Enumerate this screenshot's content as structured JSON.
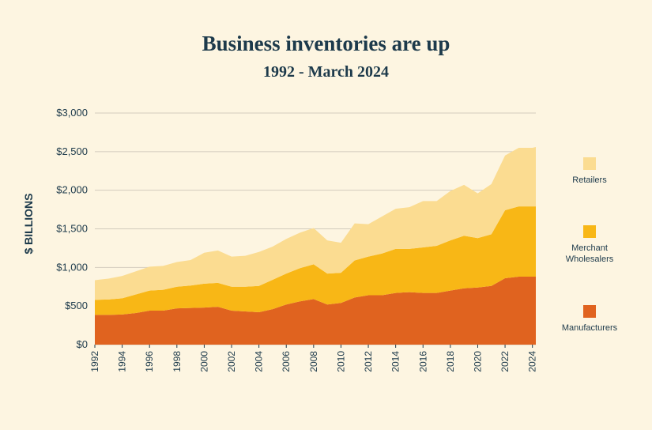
{
  "chart_data": {
    "type": "area",
    "title": "Business inventories are up",
    "subtitle": "1992 - March 2024",
    "ylabel": "$ BILLIONS",
    "xlabel": "",
    "ylim": [
      0,
      3000
    ],
    "xlim": [
      1992,
      2024.25
    ],
    "stacked": true,
    "grid": true,
    "legend_position": "right",
    "y_ticks": [
      {
        "value": 0,
        "label": "$0"
      },
      {
        "value": 500,
        "label": "$500"
      },
      {
        "value": 1000,
        "label": "$1,000"
      },
      {
        "value": 1500,
        "label": "$1,500"
      },
      {
        "value": 2000,
        "label": "$2,000"
      },
      {
        "value": 2500,
        "label": "$2,500"
      },
      {
        "value": 3000,
        "label": "$3,000"
      }
    ],
    "x_ticks": [
      "1992",
      "1994",
      "1996",
      "1998",
      "2000",
      "2002",
      "2004",
      "2006",
      "2008",
      "2010",
      "2012",
      "2014",
      "2016",
      "2018",
      "2020",
      "2022",
      "2024"
    ],
    "x": [
      1992,
      1993,
      1994,
      1995,
      1996,
      1997,
      1998,
      1999,
      2000,
      2001,
      2002,
      2003,
      2004,
      2005,
      2006,
      2007,
      2008,
      2009,
      2010,
      2011,
      2012,
      2013,
      2014,
      2015,
      2016,
      2017,
      2018,
      2019,
      2020,
      2021,
      2022,
      2023,
      2024,
      2024.25
    ],
    "series": [
      {
        "name": "Manufacturers",
        "color": "#e0631f",
        "values": [
          385,
          385,
          390,
          410,
          440,
          440,
          470,
          475,
          480,
          490,
          440,
          430,
          420,
          460,
          520,
          560,
          590,
          520,
          540,
          610,
          640,
          640,
          670,
          680,
          670,
          670,
          700,
          730,
          740,
          760,
          860,
          880,
          880,
          880
        ]
      },
      {
        "name": "Merchant Wholesalers",
        "color": "#f8b716",
        "values": [
          195,
          200,
          210,
          240,
          260,
          270,
          280,
          290,
          310,
          310,
          310,
          320,
          340,
          380,
          400,
          430,
          450,
          400,
          390,
          480,
          500,
          540,
          570,
          560,
          590,
          610,
          650,
          680,
          640,
          670,
          880,
          910,
          910,
          910
        ]
      },
      {
        "name": "Retailers",
        "color": "#fbdc91",
        "values": [
          255,
          270,
          290,
          300,
          310,
          310,
          320,
          330,
          400,
          420,
          390,
          400,
          440,
          430,
          450,
          460,
          470,
          430,
          390,
          480,
          420,
          480,
          520,
          540,
          600,
          580,
          640,
          660,
          580,
          650,
          710,
          760,
          760,
          770
        ]
      }
    ],
    "legend": [
      {
        "label": "Retailers",
        "color": "#fbdc91"
      },
      {
        "label": "Merchant\nWholesalers",
        "color": "#f8b716"
      },
      {
        "label": "Manufacturers",
        "color": "#e0631f"
      }
    ]
  }
}
